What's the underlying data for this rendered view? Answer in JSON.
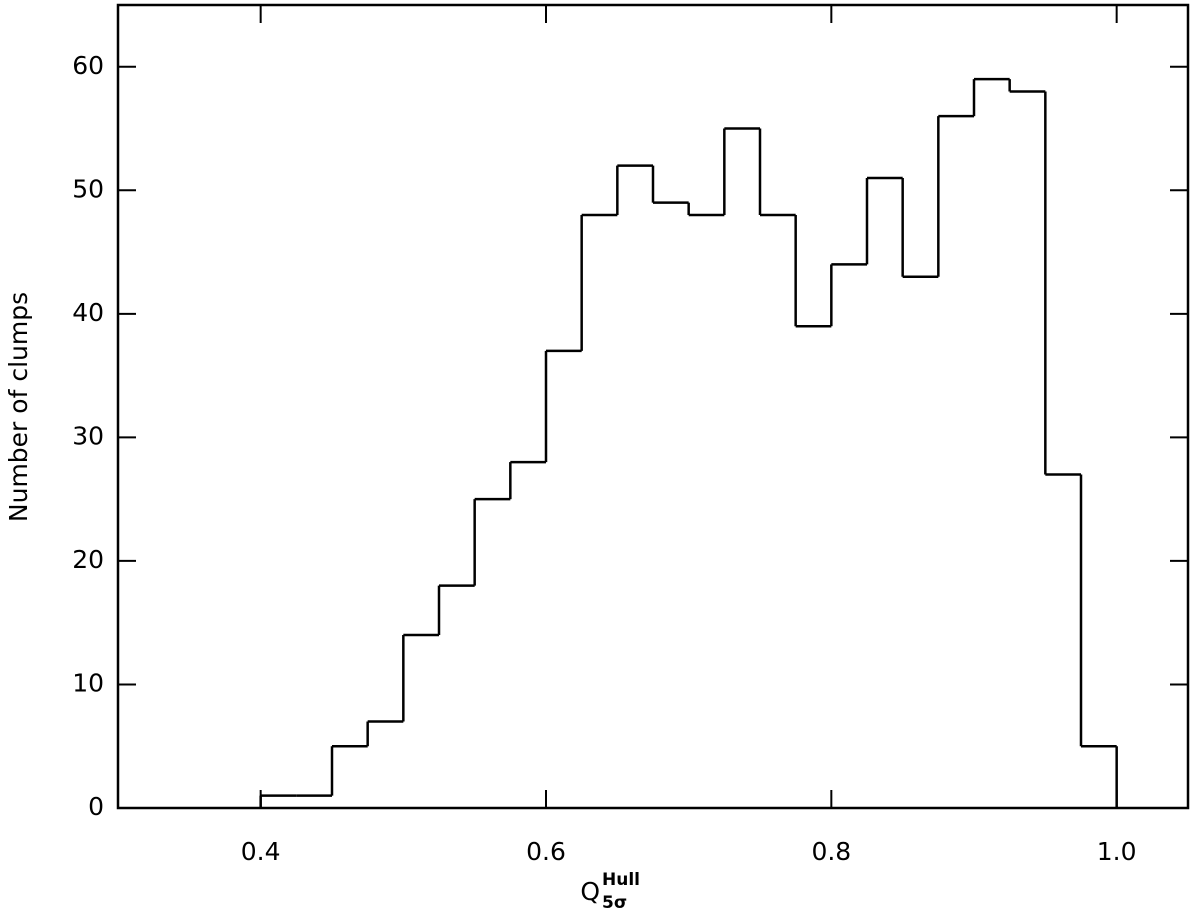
{
  "chart_data": {
    "type": "histogram",
    "xlabel": {
      "base": "Q",
      "sup": "Hull",
      "sub": "5σ"
    },
    "ylabel": "Number of clumps",
    "bins": [
      0.4,
      0.425,
      0.45,
      0.475,
      0.5,
      0.525,
      0.55,
      0.575,
      0.6,
      0.625,
      0.65,
      0.675,
      0.7,
      0.725,
      0.75,
      0.775,
      0.8,
      0.825,
      0.85,
      0.875,
      0.9,
      0.925,
      0.95,
      0.975,
      1.0
    ],
    "values": [
      1,
      1,
      5,
      7,
      14,
      18,
      25,
      28,
      37,
      48,
      52,
      49,
      48,
      55,
      48,
      39,
      44,
      51,
      43,
      56,
      59,
      58,
      27,
      5
    ],
    "color": "#000000",
    "xlim": [
      0.3,
      1.05
    ],
    "ylim": [
      0,
      65
    ],
    "xticks": [
      0.4,
      0.6,
      0.8,
      {
        "value": 1,
        "label": "1.0"
      }
    ],
    "yticks": [
      0,
      10,
      20,
      30,
      40,
      50,
      60
    ]
  }
}
